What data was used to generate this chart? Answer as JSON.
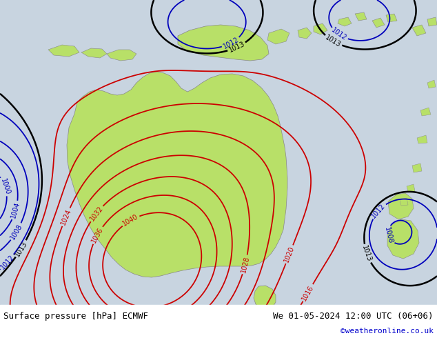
{
  "title_left": "Surface pressure [hPa] ECMWF",
  "title_right": "We 01-05-2024 12:00 UTC (06+06)",
  "watermark": "©weatheronline.co.uk",
  "bg_ocean": "#c8d4e0",
  "land_color": "#b8e068",
  "contour_low_color": "#0000bb",
  "contour_high_color": "#cc0000",
  "contour_black_color": "#000000",
  "figsize": [
    6.34,
    4.9
  ],
  "dpi": 100,
  "bottom_bar_color": "#ffffff",
  "title_color": "#000000",
  "watermark_color": "#0000cc"
}
